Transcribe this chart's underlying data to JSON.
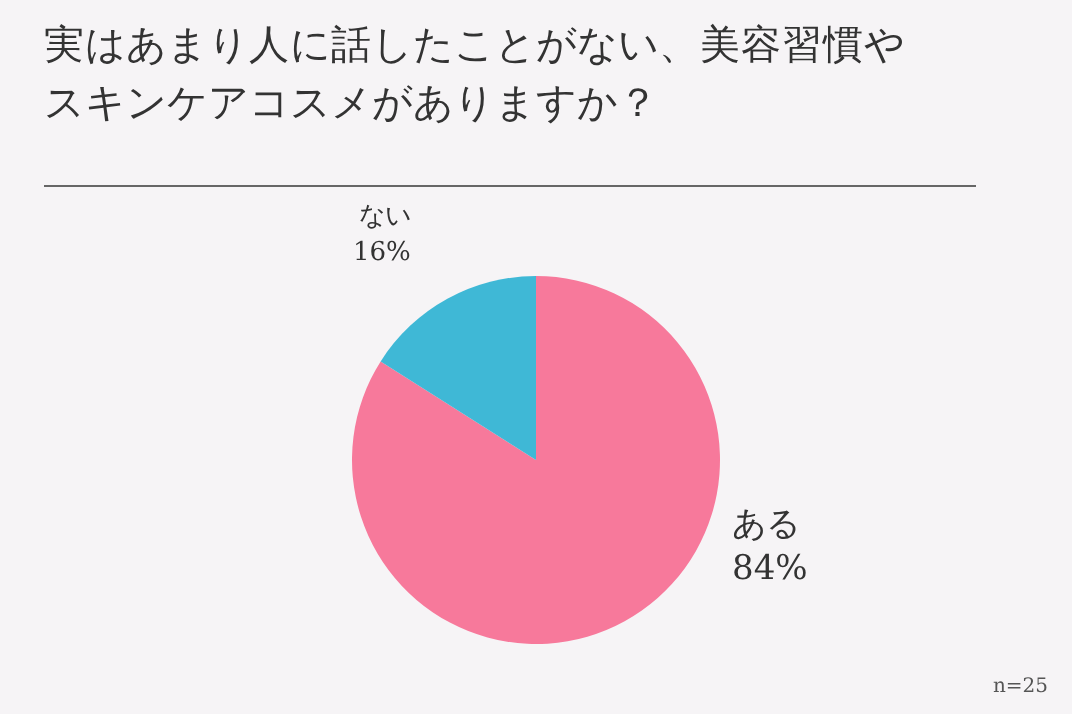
{
  "chart_data": {
    "type": "pie",
    "title": "実はあまり人に話したことがない、美容習慣やスキンケアコスメがありますか？",
    "categories": [
      "ある",
      "ない"
    ],
    "values": [
      84,
      16
    ],
    "colors": [
      "#f7799b",
      "#3fb8d6"
    ],
    "value_labels": [
      "84%",
      "16%"
    ],
    "annotations": [
      "n=25"
    ]
  }
}
